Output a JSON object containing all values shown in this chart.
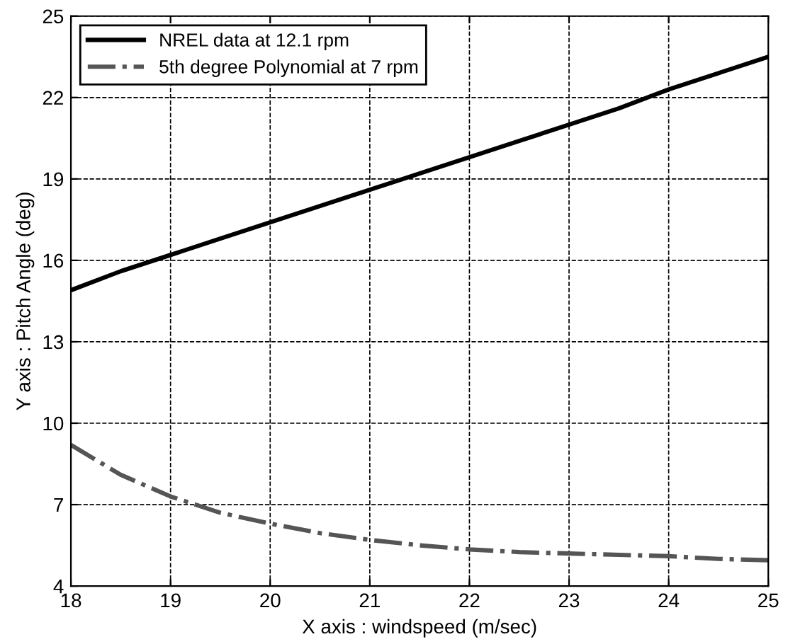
{
  "chart_data": {
    "type": "line",
    "xlabel": "X axis : windspeed (m/sec)",
    "ylabel": "Y axis : Pitch Angle (deg)",
    "x": [
      18,
      18.5,
      19,
      19.5,
      20,
      20.5,
      21,
      21.5,
      22,
      22.5,
      23,
      23.5,
      24,
      24.5,
      25
    ],
    "series": [
      {
        "name": "NREL data at 12.1 rpm",
        "color": "#000000",
        "line_style": "solid",
        "values": [
          14.9,
          15.6,
          16.2,
          16.8,
          17.4,
          18.0,
          18.6,
          19.2,
          19.8,
          20.4,
          21.0,
          21.6,
          22.3,
          22.9,
          23.5
        ]
      },
      {
        "name": "5th degree Polynomial at 7 rpm",
        "color": "#555555",
        "line_style": "dashdot",
        "values": [
          9.2,
          8.1,
          7.3,
          6.7,
          6.3,
          5.95,
          5.7,
          5.5,
          5.35,
          5.25,
          5.2,
          5.15,
          5.1,
          5.0,
          4.95
        ]
      }
    ],
    "xlim": [
      18,
      25
    ],
    "xticks": [
      18,
      19,
      20,
      21,
      22,
      23,
      24,
      25
    ],
    "ylim": [
      4,
      25
    ],
    "yticks": [
      4,
      7,
      10,
      13,
      16,
      19,
      22,
      25
    ],
    "grid": true,
    "legend": "top left",
    "marker": "none"
  }
}
